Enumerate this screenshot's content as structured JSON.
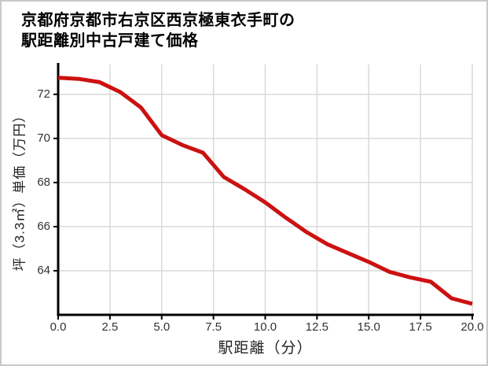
{
  "card": {
    "title_line1": "京都府京都市右京区西京極東衣手町の",
    "title_line2": "駅距離別中古戸建て価格"
  },
  "chart_data": {
    "type": "line",
    "title": "京都府京都市右京区西京極東衣手町の駅距離別中古戸建て価格",
    "xlabel": "駅距離（分）",
    "ylabel": "坪（3.3㎡）単価（万円）",
    "x": [
      0,
      1,
      2,
      3,
      4,
      5,
      6,
      7,
      8,
      9,
      10,
      11,
      12,
      13,
      14,
      15,
      16,
      17,
      18,
      19,
      20
    ],
    "values": [
      72.75,
      72.7,
      72.55,
      72.1,
      71.4,
      70.15,
      69.7,
      69.35,
      68.25,
      67.7,
      67.1,
      66.4,
      65.75,
      65.2,
      64.8,
      64.4,
      63.95,
      63.7,
      63.5,
      62.75,
      62.5
    ],
    "xlim": [
      0,
      20
    ],
    "ylim": [
      62.0,
      73.35
    ],
    "x_ticks": [
      0,
      2.5,
      5,
      7.5,
      10,
      12.5,
      15,
      17.5,
      20
    ],
    "x_tick_labels": [
      "0.0",
      "2.5",
      "5.0",
      "7.5",
      "10.0",
      "12.5",
      "15.0",
      "17.5",
      "20.0"
    ],
    "y_ticks": [
      64,
      66,
      68,
      70,
      72
    ],
    "y_tick_labels": [
      "64",
      "66",
      "68",
      "70",
      "72"
    ],
    "grid": true,
    "legend_position": "none",
    "colors": {
      "line": "#cc1111",
      "grid": "#d9d9d9",
      "axis": "#000000",
      "tick_text": "#333333",
      "background": "#ffffff"
    }
  }
}
